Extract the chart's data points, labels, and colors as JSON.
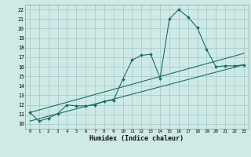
{
  "xlabel": "Humidex (Indice chaleur)",
  "bg_color": "#ceeae6",
  "grid_color": "#aaccca",
  "line_color": "#1a6e64",
  "xlim": [
    -0.5,
    23.5
  ],
  "ylim": [
    9.5,
    22.5
  ],
  "xticks": [
    0,
    1,
    2,
    3,
    4,
    5,
    6,
    7,
    8,
    9,
    10,
    11,
    12,
    13,
    14,
    15,
    16,
    17,
    18,
    19,
    20,
    21,
    22,
    23
  ],
  "yticks": [
    10,
    11,
    12,
    13,
    14,
    15,
    16,
    17,
    18,
    19,
    20,
    21,
    22
  ],
  "series1_x": [
    0,
    1,
    2,
    3,
    4,
    5,
    6,
    7,
    8,
    9,
    10,
    11,
    12,
    13,
    14,
    15,
    16,
    17,
    18,
    19,
    20,
    21,
    22,
    23
  ],
  "series1_y": [
    11.2,
    10.3,
    10.6,
    11.1,
    12.0,
    11.9,
    11.9,
    12.0,
    12.4,
    12.5,
    14.7,
    16.7,
    17.2,
    17.3,
    14.8,
    21.0,
    22.0,
    21.2,
    20.1,
    17.8,
    16.0,
    16.1,
    16.1,
    16.2
  ],
  "series2_x": [
    0,
    23
  ],
  "series2_y": [
    11.2,
    17.4
  ],
  "series3_x": [
    0,
    23
  ],
  "series3_y": [
    10.3,
    16.2
  ]
}
